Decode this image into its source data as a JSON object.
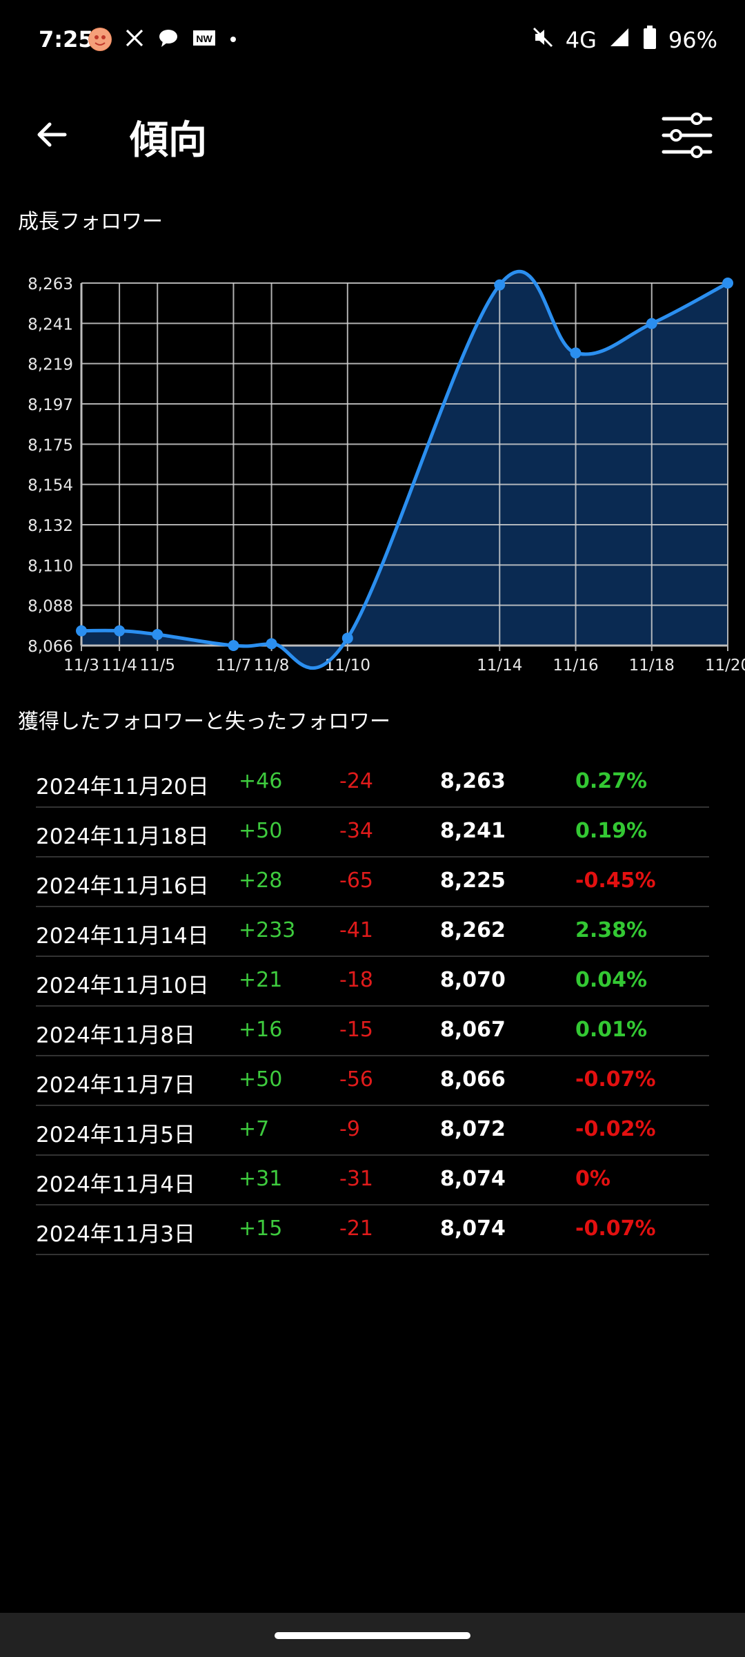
{
  "status": {
    "time": "7:25",
    "network": "4G",
    "battery": "96%",
    "app_icons": [
      "sticker-app-icon",
      "x-icon",
      "threads-icon",
      "news-app-icon"
    ]
  },
  "header": {
    "title": "傾向"
  },
  "chart_section": {
    "title": "成長フォロワー"
  },
  "chart_data": {
    "type": "area",
    "x": [
      "11/3",
      "11/4",
      "11/5",
      "11/7",
      "11/8",
      "11/10",
      "11/14",
      "11/16",
      "11/18",
      "11/20"
    ],
    "x_day": [
      3,
      4,
      5,
      7,
      8,
      10,
      14,
      16,
      18,
      20
    ],
    "values": [
      8074,
      8074,
      8072,
      8066,
      8067,
      8070,
      8262,
      8225,
      8241,
      8263
    ],
    "y_ticks": [
      "8,066",
      "8,088",
      "8,110",
      "8,132",
      "8,154",
      "8,175",
      "8,197",
      "8,219",
      "8,241",
      "8,263"
    ],
    "ylim": [
      8066,
      8263
    ],
    "grid": true,
    "line_color": "#2b8ff0",
    "fill_color": "#0a2a52"
  },
  "table_section": {
    "title": "獲得したフォロワーと失ったフォロワー"
  },
  "rows": [
    {
      "date": "2024年11月20日",
      "gain": "+46",
      "loss": "-24",
      "total": "8,263",
      "pct": "0.27%",
      "pct_positive": true
    },
    {
      "date": "2024年11月18日",
      "gain": "+50",
      "loss": "-34",
      "total": "8,241",
      "pct": "0.19%",
      "pct_positive": true
    },
    {
      "date": "2024年11月16日",
      "gain": "+28",
      "loss": "-65",
      "total": "8,225",
      "pct": "-0.45%",
      "pct_positive": false
    },
    {
      "date": "2024年11月14日",
      "gain": "+233",
      "loss": "-41",
      "total": "8,262",
      "pct": "2.38%",
      "pct_positive": true
    },
    {
      "date": "2024年11月10日",
      "gain": "+21",
      "loss": "-18",
      "total": "8,070",
      "pct": "0.04%",
      "pct_positive": true
    },
    {
      "date": "2024年11月8日",
      "gain": "+16",
      "loss": "-15",
      "total": "8,067",
      "pct": "0.01%",
      "pct_positive": true
    },
    {
      "date": "2024年11月7日",
      "gain": "+50",
      "loss": "-56",
      "total": "8,066",
      "pct": "-0.07%",
      "pct_positive": false
    },
    {
      "date": "2024年11月5日",
      "gain": "+7",
      "loss": "-9",
      "total": "8,072",
      "pct": "-0.02%",
      "pct_positive": false
    },
    {
      "date": "2024年11月4日",
      "gain": "+31",
      "loss": "-31",
      "total": "8,074",
      "pct": "0%",
      "pct_positive": false
    },
    {
      "date": "2024年11月3日",
      "gain": "+15",
      "loss": "-21",
      "total": "8,074",
      "pct": "-0.07%",
      "pct_positive": false
    }
  ]
}
